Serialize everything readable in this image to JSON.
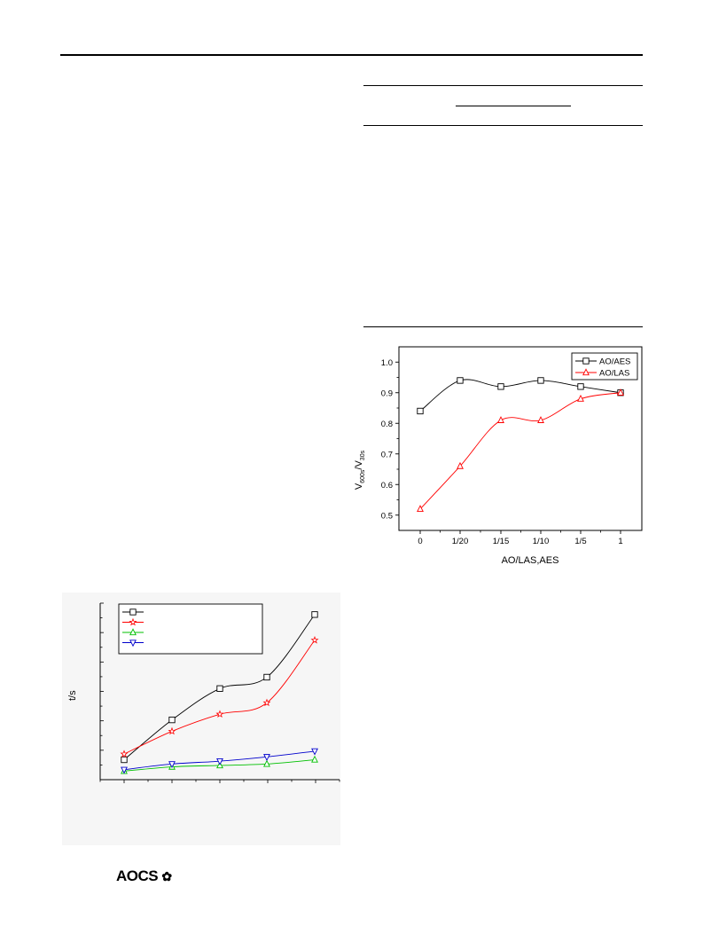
{
  "footer": {
    "logo_text": "AOCS",
    "logo_mark": "✿"
  },
  "chart_data": [
    {
      "type": "line",
      "title": "",
      "xlabel": "",
      "ylabel": "t/s",
      "x": [
        1,
        2,
        3,
        4,
        5
      ],
      "series": [
        {
          "color": "#000000",
          "marker": "square",
          "values": [
            7,
            21,
            32,
            36,
            58
          ]
        },
        {
          "color": "#ff0000",
          "marker": "star",
          "values": [
            9,
            17,
            23,
            27,
            49
          ]
        },
        {
          "color": "#00c000",
          "marker": "triangle-up",
          "values": [
            3,
            4.5,
            5,
            5.5,
            7
          ]
        },
        {
          "color": "#0000cc",
          "marker": "triangle-down",
          "values": [
            3.5,
            5.5,
            6.5,
            8,
            10
          ]
        }
      ],
      "ylim": [
        0,
        62
      ],
      "grid": false,
      "legend": "top-left"
    },
    {
      "type": "line",
      "title": "",
      "xlabel": "AO/LAS,AES",
      "ylabel_main": "V",
      "ylabel_sub1": "600s",
      "ylabel_mid": "/V",
      "ylabel_sub2": "30s",
      "categories": [
        "0",
        "1/20",
        "1/15",
        "1/10",
        "1/5",
        "1"
      ],
      "series": [
        {
          "name": "AO/AES",
          "color": "#000000",
          "marker": "square",
          "values": [
            0.84,
            0.94,
            0.92,
            0.94,
            0.92,
            0.9
          ]
        },
        {
          "name": "AO/LAS",
          "color": "#ff0000",
          "marker": "triangle",
          "values": [
            0.52,
            0.66,
            0.81,
            0.81,
            0.88,
            0.9
          ]
        }
      ],
      "yticks": [
        "0.5",
        "0.6",
        "0.7",
        "0.8",
        "0.9",
        "1.0"
      ],
      "ylim": [
        0.45,
        1.05
      ],
      "grid": false,
      "legend": "top-right"
    }
  ]
}
